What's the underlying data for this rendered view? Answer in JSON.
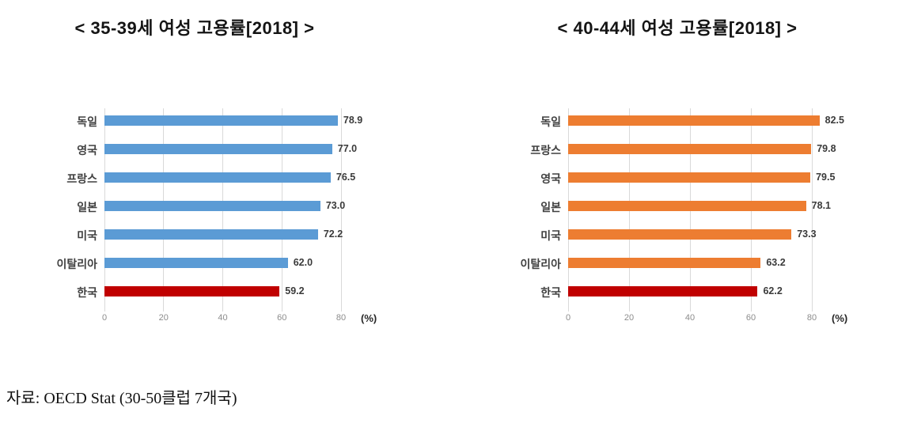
{
  "source_note": "자료: OECD Stat (30-50클럽 7개국)",
  "chart_data": [
    {
      "type": "bar",
      "orientation": "horizontal",
      "title": "< 35-39세 여성 고용률[2018] >",
      "categories": [
        "독일",
        "영국",
        "프랑스",
        "일본",
        "미국",
        "이탈리아",
        "한국"
      ],
      "values": [
        78.9,
        77.0,
        76.5,
        73.0,
        72.2,
        62.0,
        59.2
      ],
      "value_labels": [
        "78.9",
        "77.0",
        "76.5",
        "73.0",
        "72.2",
        "62.0",
        "59.2"
      ],
      "bar_color": "#5b9bd5",
      "highlight": {
        "category": "한국",
        "color": "#c00000"
      },
      "x_ticks": [
        0,
        20,
        40,
        60,
        80
      ],
      "xlim": [
        0,
        88
      ],
      "axis_unit_label": "(%)",
      "grid": true,
      "legend": "none"
    },
    {
      "type": "bar",
      "orientation": "horizontal",
      "title": "< 40-44세 여성 고용률[2018] >",
      "categories": [
        "독일",
        "프랑스",
        "영국",
        "일본",
        "미국",
        "이탈리아",
        "한국"
      ],
      "values": [
        82.5,
        79.8,
        79.5,
        78.1,
        73.3,
        63.2,
        62.2
      ],
      "value_labels": [
        "82.5",
        "79.8",
        "79.5",
        "78.1",
        "73.3",
        "63.2",
        "62.2"
      ],
      "bar_color": "#ed7d31",
      "highlight": {
        "category": "한국",
        "color": "#c00000"
      },
      "x_ticks": [
        0,
        20,
        40,
        60,
        80
      ],
      "xlim": [
        0,
        88
      ],
      "axis_unit_label": "(%)",
      "grid": true,
      "legend": "none"
    }
  ]
}
